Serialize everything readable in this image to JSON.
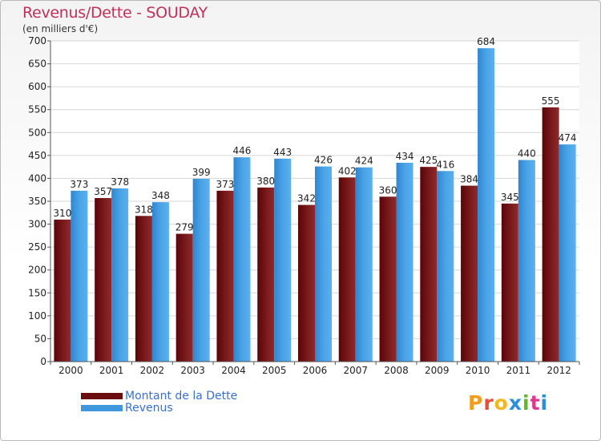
{
  "title": "Revenus/Dette - SOUDAY",
  "subtitle": "(en milliers d'€)",
  "colors": {
    "dette": "#6b0c0f",
    "revenus": "#3f97dc",
    "title": "#c0305d"
  },
  "legend": {
    "dette_label": "Montant de la Dette",
    "revenus_label": "Revenus"
  },
  "logo": {
    "text": "Proxiti",
    "letter_colors": [
      "#f39d1d",
      "#e94e3b",
      "#f3b81d",
      "#2a8fd6",
      "#64b23a",
      "#d93a8c",
      "#2a8fd6"
    ]
  },
  "chart_data": {
    "type": "bar",
    "categories": [
      "2000",
      "2001",
      "2002",
      "2003",
      "2004",
      "2005",
      "2006",
      "2007",
      "2008",
      "2009",
      "2010",
      "2011",
      "2012"
    ],
    "series": [
      {
        "name": "Montant de la Dette",
        "values": [
          310,
          357,
          318,
          279,
          373,
          380,
          342,
          402,
          360,
          425,
          384,
          345,
          555
        ]
      },
      {
        "name": "Revenus",
        "values": [
          373,
          378,
          348,
          399,
          446,
          443,
          426,
          424,
          434,
          416,
          684,
          440,
          474
        ]
      }
    ],
    "ylim": [
      0,
      700
    ],
    "yticks": [
      0,
      50,
      100,
      150,
      200,
      250,
      300,
      350,
      400,
      450,
      500,
      550,
      600,
      650,
      700
    ],
    "grid": true,
    "legend_position": "bottom-left"
  }
}
